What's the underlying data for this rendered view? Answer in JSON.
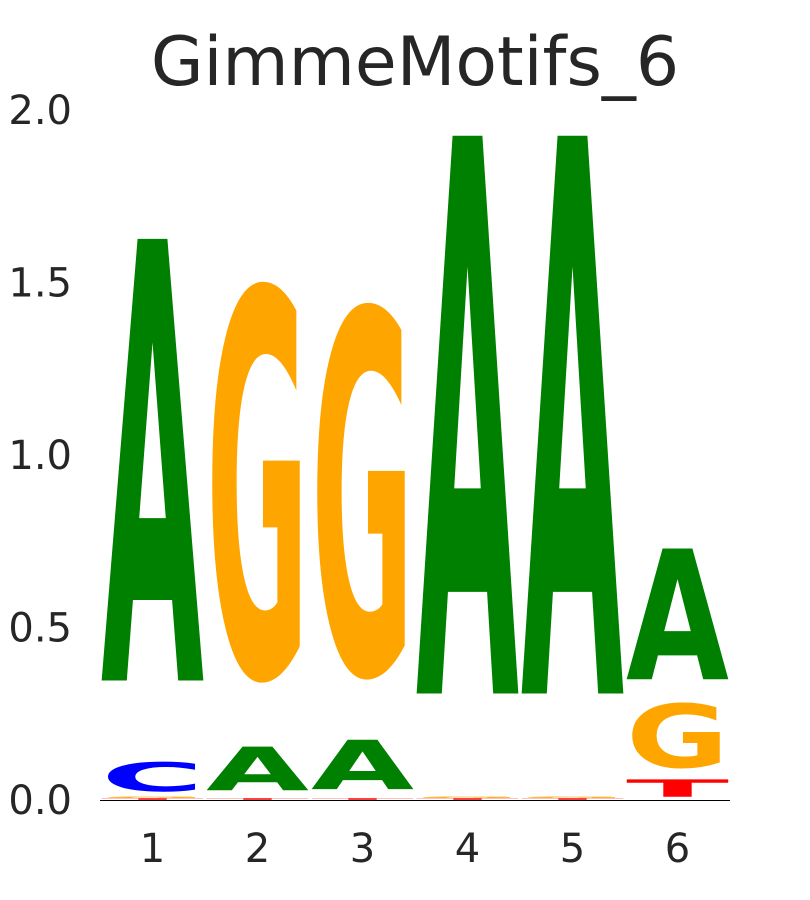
{
  "chart_data": {
    "type": "sequence-logo",
    "title": "GimmeMotifs_6",
    "xlabel": "",
    "ylabel": "",
    "ylim": [
      0,
      2.0
    ],
    "y_ticks": [
      "0.0",
      "0.5",
      "1.0",
      "1.5",
      "2.0"
    ],
    "y_tick_values": [
      0,
      0.5,
      1.0,
      1.5,
      2.0
    ],
    "positions": [
      "1",
      "2",
      "3",
      "4",
      "5",
      "6"
    ],
    "grid": false,
    "legend": "none",
    "colors": {
      "A": "#008000",
      "C": "#0000ff",
      "G": "#ffa500",
      "T": "#ff0000"
    },
    "stacks": [
      [
        {
          "base": "T",
          "height": 0.005
        },
        {
          "base": "G",
          "height": 0.005
        },
        {
          "base": "C",
          "height": 0.1
        },
        {
          "base": "A",
          "height": 1.52
        }
      ],
      [
        {
          "base": "T",
          "height": 0.005
        },
        {
          "base": "A",
          "height": 0.15
        },
        {
          "base": "G",
          "height": 1.33
        }
      ],
      [
        {
          "base": "T",
          "height": 0.005
        },
        {
          "base": "A",
          "height": 0.17
        },
        {
          "base": "G",
          "height": 1.25
        }
      ],
      [
        {
          "base": "T",
          "height": 0.005
        },
        {
          "base": "G",
          "height": 0.005
        },
        {
          "base": "A",
          "height": 1.92
        }
      ],
      [
        {
          "base": "T",
          "height": 0.005
        },
        {
          "base": "G",
          "height": 0.005
        },
        {
          "base": "A",
          "height": 1.92
        }
      ],
      [
        {
          "base": "T",
          "height": 0.06
        },
        {
          "base": "G",
          "height": 0.22
        },
        {
          "base": "A",
          "height": 0.45
        }
      ]
    ]
  }
}
